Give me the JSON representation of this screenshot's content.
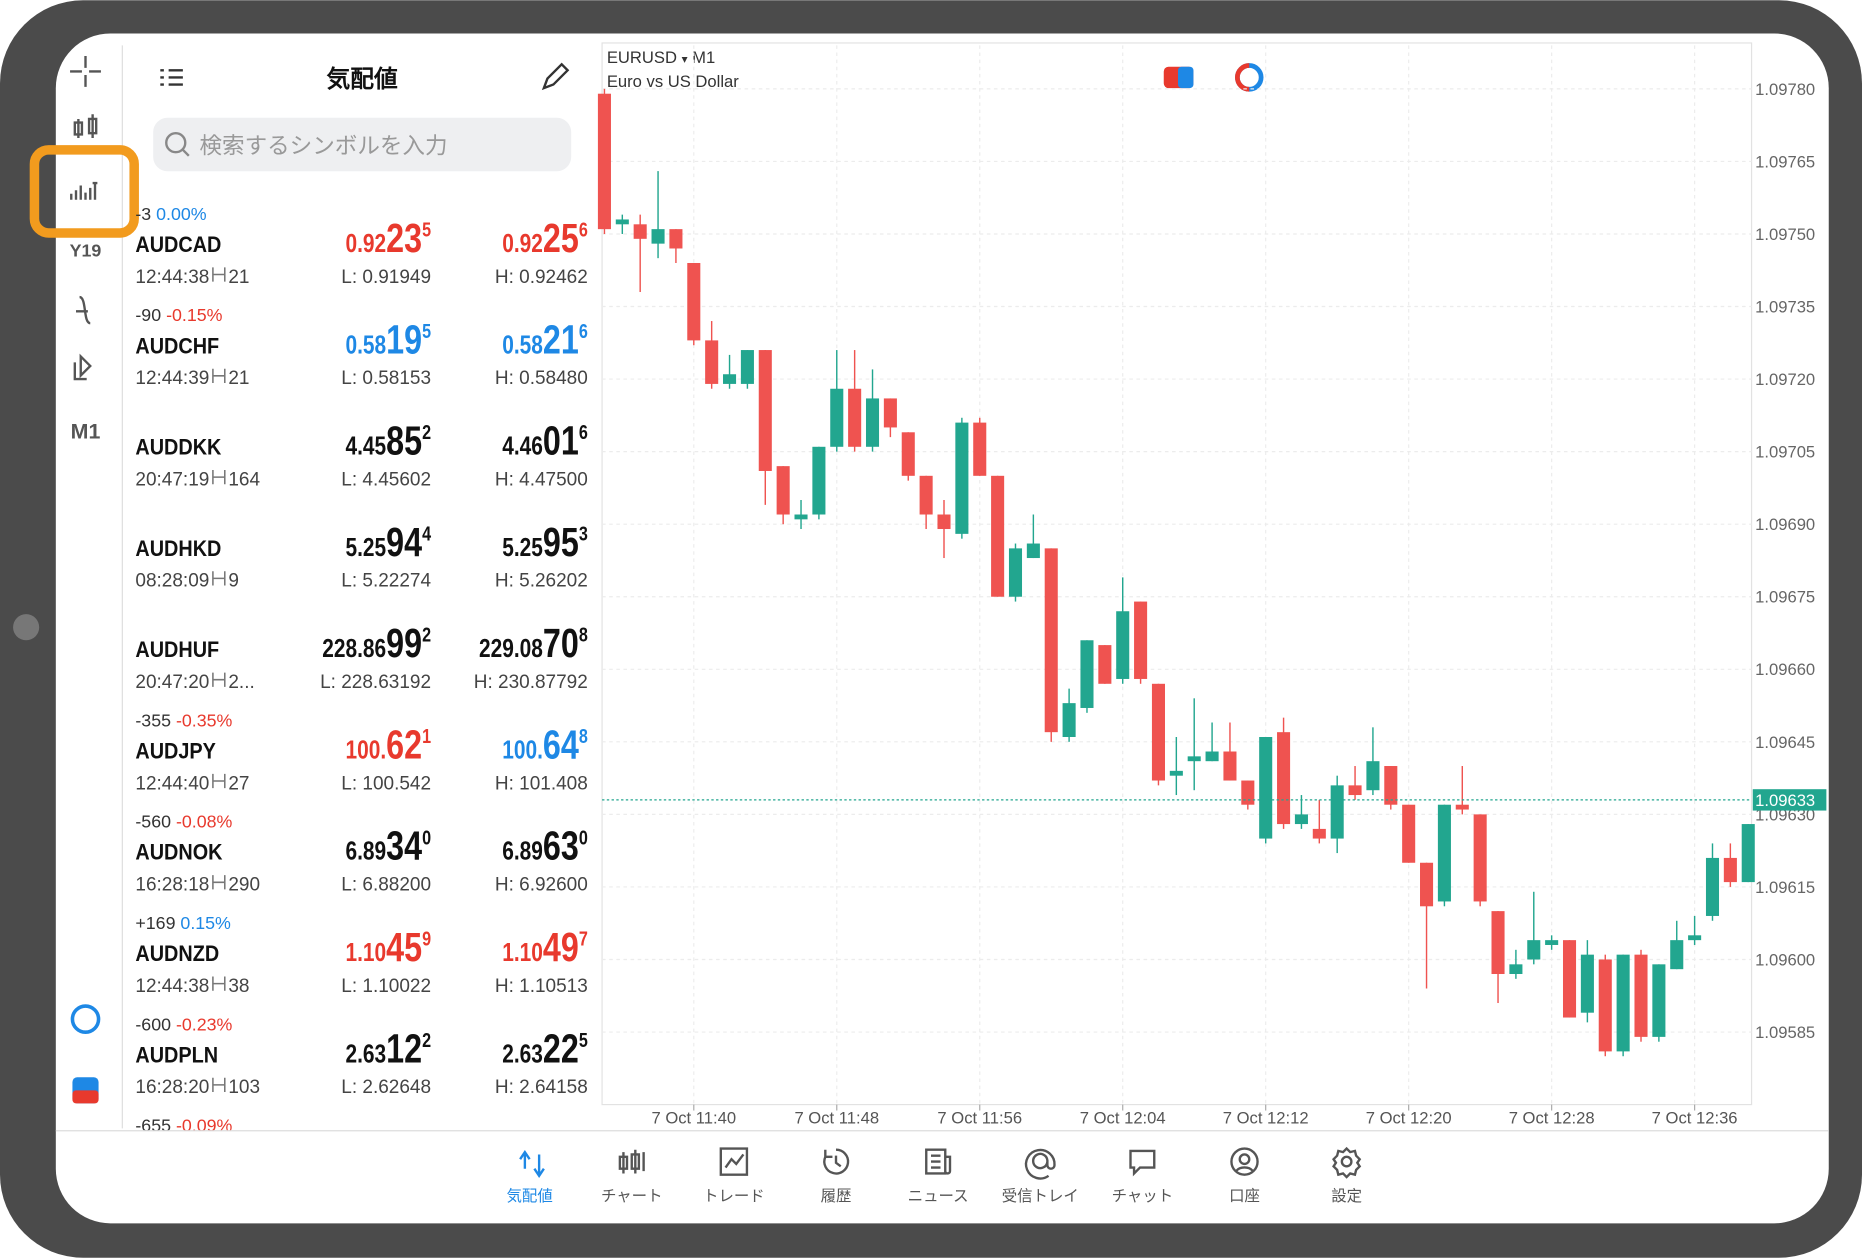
{
  "sidebar": {
    "timeframe": "M1"
  },
  "quotes_panel": {
    "title": "気配値",
    "search_placeholder": "検索するシンボルを入力",
    "quotes": [
      {
        "change": "-3",
        "change_pct": "0.00%",
        "change_color": "#1e88e5",
        "symbol": "AUDCAD",
        "time": "12:44:38",
        "spread": "21",
        "bid": {
          "pre": "0.92",
          "big": "23",
          "sup": "5",
          "color": "#e8392d"
        },
        "ask": {
          "pre": "0.92",
          "big": "25",
          "sup": "6",
          "color": "#e8392d"
        },
        "low": "L: 0.91949",
        "high": "H: 0.92462"
      },
      {
        "change": "-90",
        "change_pct": "-0.15%",
        "change_color": "#e8392d",
        "symbol": "AUDCHF",
        "time": "12:44:39",
        "spread": "21",
        "bid": {
          "pre": "0.58",
          "big": "19",
          "sup": "5",
          "color": "#1e88e5"
        },
        "ask": {
          "pre": "0.58",
          "big": "21",
          "sup": "6",
          "color": "#1e88e5"
        },
        "low": "L: 0.58153",
        "high": "H: 0.58480"
      },
      {
        "symbol": "AUDDKK",
        "time": "20:47:19",
        "spread": "164",
        "bid": {
          "pre": "4.45",
          "big": "85",
          "sup": "2",
          "color": "#111111"
        },
        "ask": {
          "pre": "4.46",
          "big": "01",
          "sup": "6",
          "color": "#111111"
        },
        "low": "L: 4.45602",
        "high": "H: 4.47500"
      },
      {
        "symbol": "AUDHKD",
        "time": "08:28:09",
        "spread": "9",
        "bid": {
          "pre": "5.25",
          "big": "94",
          "sup": "4",
          "color": "#111111"
        },
        "ask": {
          "pre": "5.25",
          "big": "95",
          "sup": "3",
          "color": "#111111"
        },
        "low": "L: 5.22274",
        "high": "H: 5.26202"
      },
      {
        "symbol": "AUDHUF",
        "time": "20:47:20",
        "spread": "2...",
        "bid": {
          "pre": "228.86",
          "big": "99",
          "sup": "2",
          "color": "#111111"
        },
        "ask": {
          "pre": "229.08",
          "big": "70",
          "sup": "8",
          "color": "#111111"
        },
        "low": "L: 228.63192",
        "high": "H: 230.87792"
      },
      {
        "change": "-355",
        "change_pct": "-0.35%",
        "change_color": "#e8392d",
        "symbol": "AUDJPY",
        "time": "12:44:40",
        "spread": "27",
        "bid": {
          "pre": "100.",
          "big": "62",
          "sup": "1",
          "color": "#e8392d"
        },
        "ask": {
          "pre": "100.",
          "big": "64",
          "sup": "8",
          "color": "#1e88e5"
        },
        "low": "L: 100.542",
        "high": "H: 101.408"
      },
      {
        "change": "-560",
        "change_pct": "-0.08%",
        "change_color": "#e8392d",
        "symbol": "AUDNOK",
        "time": "16:28:18",
        "spread": "290",
        "bid": {
          "pre": "6.89",
          "big": "34",
          "sup": "0",
          "color": "#111111"
        },
        "ask": {
          "pre": "6.89",
          "big": "63",
          "sup": "0",
          "color": "#111111"
        },
        "low": "L: 6.88200",
        "high": "H: 6.92600"
      },
      {
        "change": "+169",
        "change_pct": "0.15%",
        "change_color": "#1e88e5",
        "symbol": "AUDNZD",
        "time": "12:44:38",
        "spread": "38",
        "bid": {
          "pre": "1.10",
          "big": "45",
          "sup": "9",
          "color": "#e8392d"
        },
        "ask": {
          "pre": "1.10",
          "big": "49",
          "sup": "7",
          "color": "#e8392d"
        },
        "low": "L: 1.10022",
        "high": "H: 1.10513"
      },
      {
        "change": "-600",
        "change_pct": "-0.23%",
        "change_color": "#e8392d",
        "symbol": "AUDPLN",
        "time": "16:28:20",
        "spread": "103",
        "bid": {
          "pre": "2.63",
          "big": "12",
          "sup": "2",
          "color": "#111111"
        },
        "ask": {
          "pre": "2.63",
          "big": "22",
          "sup": "5",
          "color": "#111111"
        },
        "low": "L: 2.62648",
        "high": "H: 2.64158"
      },
      {
        "change": "-655",
        "change_pct": "-0.09%",
        "change_color": "#e8392d"
      }
    ]
  },
  "chart_data": {
    "type": "candlestick",
    "symbol": "EURUSD",
    "symbol_arrow": "▾",
    "timeframe": "M1",
    "subtitle": "Euro vs US Dollar",
    "up_color": "#22a68f",
    "down_color": "#ef5350",
    "categories": [
      null,
      null,
      null,
      null,
      null,
      "7 Oct 11:40",
      null,
      null,
      null,
      null,
      null,
      null,
      null,
      "7 Oct 11:48",
      null,
      null,
      null,
      null,
      null,
      null,
      null,
      "7 Oct 11:56",
      null,
      null,
      null,
      null,
      null,
      null,
      null,
      "7 Oct 12:04",
      null,
      null,
      null,
      null,
      null,
      null,
      null,
      "7 Oct 12:12",
      null,
      null,
      null,
      null,
      null,
      null,
      null,
      "7 Oct 12:20",
      null,
      null,
      null,
      null,
      null,
      null,
      null,
      "7 Oct 12:28",
      null,
      null,
      null,
      null,
      null,
      null,
      null,
      "7 Oct 12:36",
      null,
      null,
      null
    ],
    "open": [
      1.09779,
      1.09752,
      1.09752,
      1.09748,
      1.09751,
      1.09744,
      1.09728,
      1.09719,
      1.09719,
      1.09726,
      1.09702,
      1.09691,
      1.09692,
      1.09706,
      1.09718,
      1.09706,
      1.09716,
      1.09709,
      1.097,
      1.09692,
      1.09688,
      1.09711,
      1.097,
      1.09675,
      1.09683,
      1.09685,
      1.09646,
      1.09652,
      1.09665,
      1.09658,
      1.09674,
      1.09657,
      1.09638,
      1.09641,
      1.09641,
      1.09643,
      1.09637,
      1.09625,
      1.09647,
      1.09628,
      1.09627,
      1.09625,
      1.09636,
      1.09635,
      1.0964,
      1.09632,
      1.0962,
      1.09612,
      1.09632,
      1.0963,
      1.0961,
      1.09597,
      1.096,
      1.09603,
      1.09604,
      1.09589,
      1.096,
      1.09581,
      1.09601,
      1.09584,
      1.09598,
      1.09604,
      1.09609,
      1.09621,
      1.09616
    ],
    "high": [
      1.0978,
      1.09754,
      1.09754,
      1.09763,
      1.09751,
      1.09744,
      1.09732,
      1.09725,
      1.09726,
      1.09726,
      1.09702,
      1.09695,
      1.09706,
      1.09726,
      1.09726,
      1.09722,
      1.09716,
      1.09709,
      1.097,
      1.09695,
      1.09712,
      1.09712,
      1.097,
      1.09686,
      1.09692,
      1.09685,
      1.09656,
      1.09666,
      1.09665,
      1.09679,
      1.09674,
      1.09657,
      1.09646,
      1.09654,
      1.09649,
      1.09649,
      1.09637,
      1.09646,
      1.0965,
      1.09634,
      1.09633,
      1.09638,
      1.0964,
      1.09648,
      1.0964,
      1.09632,
      1.0962,
      1.09632,
      1.0964,
      1.0963,
      1.0961,
      1.09602,
      1.09614,
      1.09605,
      1.09604,
      1.09604,
      1.09601,
      1.09601,
      1.09602,
      1.09599,
      1.09608,
      1.09609,
      1.09624,
      1.09624,
      1.09628
    ],
    "low": [
      1.0975,
      1.0975,
      1.09738,
      1.09745,
      1.09744,
      1.09727,
      1.09718,
      1.09718,
      1.09718,
      1.09694,
      1.0969,
      1.09689,
      1.09691,
      1.09705,
      1.09705,
      1.09705,
      1.09708,
      1.09699,
      1.09689,
      1.09683,
      1.09687,
      1.097,
      1.09675,
      1.09674,
      1.09683,
      1.09645,
      1.09645,
      1.09651,
      1.09657,
      1.09657,
      1.09657,
      1.09636,
      1.09634,
      1.09635,
      1.09641,
      1.09637,
      1.09631,
      1.09624,
      1.09627,
      1.09627,
      1.09624,
      1.09622,
      1.09633,
      1.09634,
      1.09631,
      1.0962,
      1.09594,
      1.09611,
      1.0963,
      1.09611,
      1.09591,
      1.09596,
      1.09599,
      1.09602,
      1.09588,
      1.09587,
      1.0958,
      1.0958,
      1.09583,
      1.09583,
      1.09598,
      1.09603,
      1.09608,
      1.09615,
      1.09616
    ],
    "close": [
      1.09751,
      1.09753,
      1.09749,
      1.09751,
      1.09747,
      1.09728,
      1.09719,
      1.09721,
      1.09726,
      1.09701,
      1.09692,
      1.09692,
      1.09706,
      1.09718,
      1.09706,
      1.09716,
      1.0971,
      1.097,
      1.09692,
      1.09689,
      1.09711,
      1.097,
      1.09675,
      1.09685,
      1.09686,
      1.09647,
      1.09653,
      1.09666,
      1.09657,
      1.09672,
      1.09658,
      1.09637,
      1.09639,
      1.09642,
      1.09643,
      1.09637,
      1.09632,
      1.09646,
      1.09628,
      1.0963,
      1.09625,
      1.09636,
      1.09634,
      1.09641,
      1.09632,
      1.0962,
      1.09611,
      1.09632,
      1.09631,
      1.09612,
      1.09597,
      1.09599,
      1.09604,
      1.09604,
      1.09588,
      1.09601,
      1.09581,
      1.09601,
      1.09584,
      1.09599,
      1.09604,
      1.09605,
      1.09621,
      1.09616,
      1.09628
    ],
    "ylim": [
      1.0957,
      1.09789
    ],
    "yticks": [
      {
        "value": 1.0978,
        "label": "1.09780"
      },
      1.09765,
      {
        "value": 1.0975,
        "label": "1.09750"
      },
      1.09735,
      {
        "value": 1.0972,
        "label": "1.09720"
      },
      1.09705,
      {
        "value": 1.0969,
        "label": "1.09690"
      },
      1.09675,
      {
        "value": 1.0966,
        "label": "1.09660"
      },
      1.09645,
      {
        "value": 1.0963,
        "label": "1.09630"
      },
      1.09615,
      {
        "value": 1.096,
        "label": "1.09600"
      },
      1.09585
    ],
    "current_price": 1.09633,
    "grid": true
  },
  "tab_bar": {
    "active": 0,
    "tabs": [
      "気配値",
      "チャート",
      "トレード",
      "履歴",
      "ニュース",
      "受信トレイ",
      "チャット",
      "口座",
      "設定"
    ]
  }
}
